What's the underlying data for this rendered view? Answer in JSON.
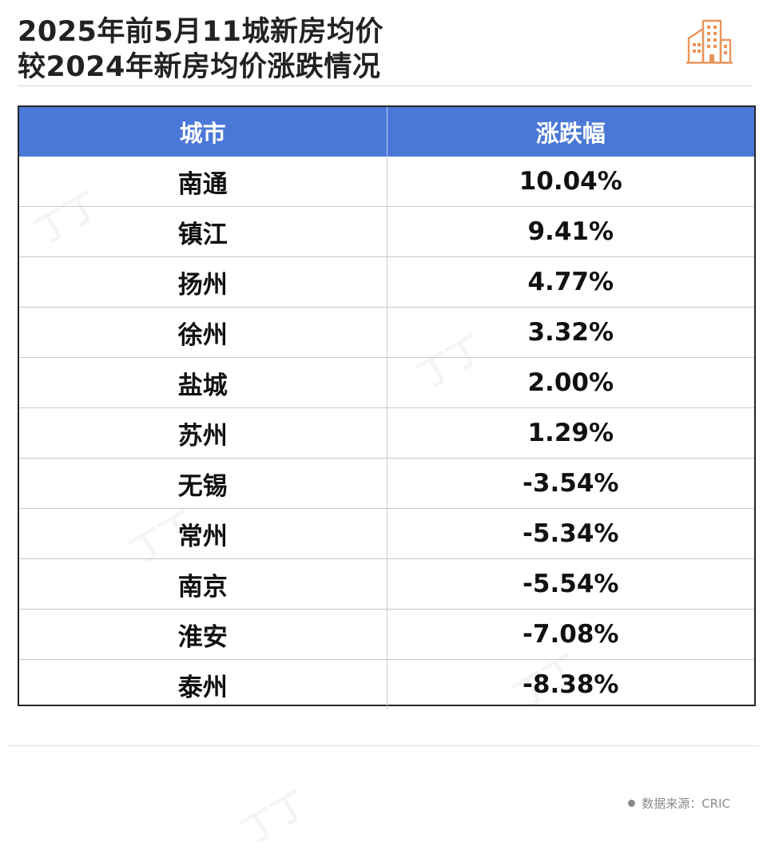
{
  "header": {
    "title_line1": "2025年前5月11城新房均价",
    "title_line2": "较2024年新房均价涨跌情况",
    "logo_icon": "buildings-icon"
  },
  "colors": {
    "header_bg": "#4a78d8",
    "header_text": "#ffffff",
    "logo_accent": "#e8955a"
  },
  "chart_data": {
    "type": "table",
    "columns": [
      "城市",
      "涨跌幅"
    ],
    "rows": [
      {
        "city": "南通",
        "change": "10.04%"
      },
      {
        "city": "镇江",
        "change": "9.41%"
      },
      {
        "city": "扬州",
        "change": "4.77%"
      },
      {
        "city": "徐州",
        "change": "3.32%"
      },
      {
        "city": "盐城",
        "change": "2.00%"
      },
      {
        "city": "苏州",
        "change": "1.29%"
      },
      {
        "city": "无锡",
        "change": "-3.54%"
      },
      {
        "city": "常州",
        "change": "-5.34%"
      },
      {
        "city": "南京",
        "change": "-5.54%"
      },
      {
        "city": "淮安",
        "change": "-7.08%"
      },
      {
        "city": "泰州",
        "change": "-8.38%"
      }
    ]
  },
  "footer": {
    "source": "数据来源：CRIC"
  }
}
